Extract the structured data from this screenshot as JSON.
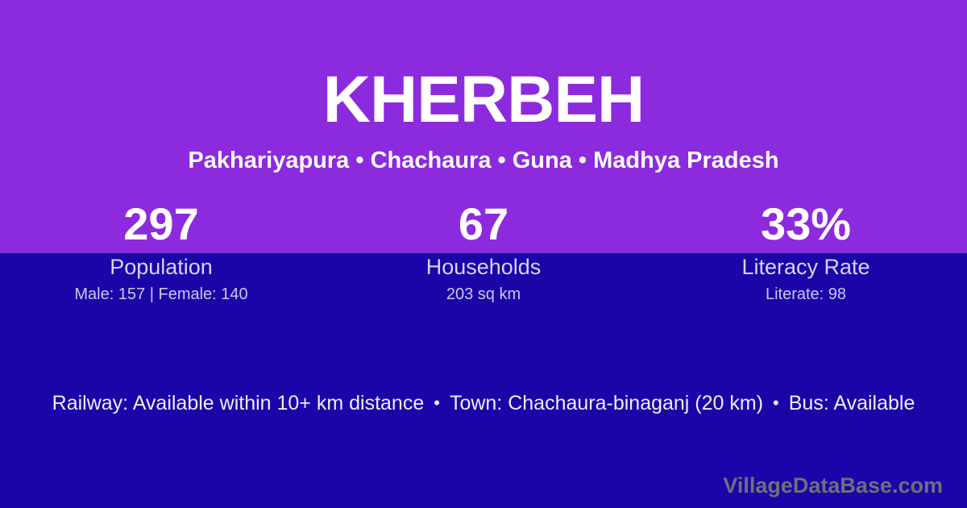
{
  "colors": {
    "top_bg": "#8C2ADD",
    "bottom_bg": "#1A05A8",
    "title_text": "#FFFFFF",
    "label_text": "#D9D2F2",
    "detail_text": "#CEC6EC",
    "footer_text": "#EFECFB",
    "watermark_text": "#6F6F7C"
  },
  "header": {
    "title": "KHERBEH",
    "subtitle": "Pakhariyapura • Chachaura • Guna • Madhya Pradesh"
  },
  "stats": [
    {
      "value": "297",
      "label": "Population",
      "detail": "Male: 157 | Female: 140"
    },
    {
      "value": "67",
      "label": "Households",
      "detail": "203 sq km"
    },
    {
      "value": "33%",
      "label": "Literacy Rate",
      "detail": "Literate: 98"
    }
  ],
  "footer": {
    "separator": "•",
    "segments": [
      "Railway: Available within 10+ km distance",
      "Town: Chachaura-binaganj (20 km)",
      "Bus: Available"
    ]
  },
  "watermark": "VillageDataBase.com"
}
